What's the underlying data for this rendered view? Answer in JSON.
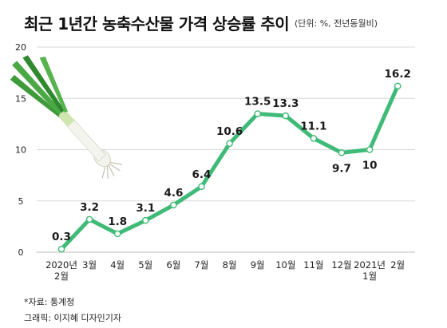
{
  "title": "최근 1년간 농축수산물 가격 상승률 추이",
  "unit_note": "(단위: %, 전년동월비)",
  "source": "*자료: 통계청",
  "credit": "그래픽: 이지혜 디자인기자",
  "colors": {
    "line": "#3fba77",
    "marker_fill": "#ffffff",
    "grid": "#d9d9d9",
    "axis_text": "#222222",
    "onion_green": "#3f9a3a",
    "onion_white": "#f4f4ee"
  },
  "decoration_icon": "green-onion-icon",
  "chart_data": {
    "type": "line",
    "title": "최근 1년간 농축수산물 가격 상승률 추이",
    "x": [
      "2020년 2월",
      "3월",
      "4월",
      "5월",
      "6월",
      "7월",
      "8월",
      "9월",
      "10월",
      "11월",
      "12월",
      "2021년 1월",
      "2월"
    ],
    "x_tick_labels": [
      [
        "2020년",
        "2월"
      ],
      [
        "3월"
      ],
      [
        "4월"
      ],
      [
        "5월"
      ],
      [
        "6월"
      ],
      [
        "7월"
      ],
      [
        "8월"
      ],
      [
        "9월"
      ],
      [
        "10월"
      ],
      [
        "11월"
      ],
      [
        "12월"
      ],
      [
        "2021년",
        "1월"
      ],
      [
        "2월"
      ]
    ],
    "series": [
      {
        "values": [
          0.3,
          3.2,
          1.8,
          3.1,
          4.6,
          6.4,
          10.6,
          13.5,
          13.3,
          11.1,
          9.7,
          10,
          16.2
        ],
        "labels": [
          "0.3",
          "3.2",
          "1.8",
          "3.1",
          "4.6",
          "6.4",
          "10.6",
          "13.5",
          "13.3",
          "11.1",
          "9.7",
          "10",
          "16.2"
        ],
        "label_positions": [
          "above",
          "above",
          "above",
          "above",
          "above",
          "above",
          "above",
          "above",
          "above",
          "above",
          "below",
          "below",
          "above"
        ]
      }
    ],
    "ylim": [
      0,
      20
    ],
    "yticks": [
      0,
      5,
      10,
      15,
      20
    ],
    "grid": "horizontal",
    "legend": "none"
  }
}
